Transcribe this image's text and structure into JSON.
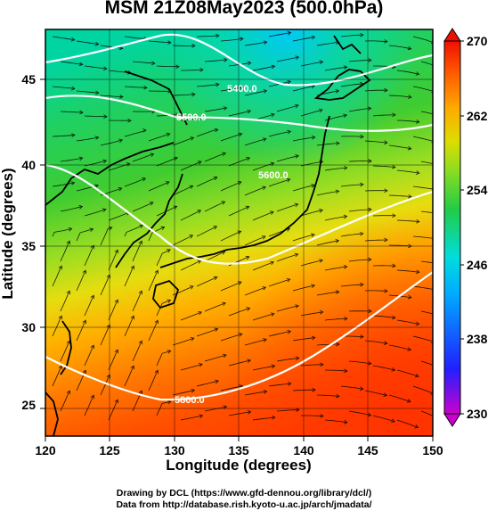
{
  "title": "MSM 21Z08May2023 (500.0hPa)",
  "x_axis": {
    "label": "Longitude (degrees)",
    "ticks": [
      "120",
      "125",
      "130",
      "135",
      "140",
      "145",
      "150"
    ],
    "range": [
      120,
      150
    ]
  },
  "y_axis": {
    "label": "Latitude  (degrees)",
    "ticks": [
      "25",
      "30",
      "35",
      "40",
      "45"
    ],
    "range": [
      22.4,
      47.6
    ]
  },
  "colorbar": {
    "ticks": [
      "230",
      "238",
      "246",
      "254",
      "262",
      "270"
    ],
    "range": [
      230,
      270
    ],
    "colormap": [
      "#cc00cc",
      "#2020ff",
      "#00aaff",
      "#00dddd",
      "#22cc44",
      "#88dd22",
      "#dddd00",
      "#ffaa00",
      "#ff5500",
      "#ee1100"
    ]
  },
  "contours": [
    {
      "label": "5400.0"
    },
    {
      "label": "5500.0"
    },
    {
      "label": "5600.0"
    },
    {
      "label": "5800.0"
    }
  ],
  "credits": {
    "line1": "Drawing by DCL (https://www.gfd-dennou.org/library/dcl/)",
    "line2": "Data from http://database.rish.kyoto-u.ac.jp/arch/jmadata/"
  }
}
